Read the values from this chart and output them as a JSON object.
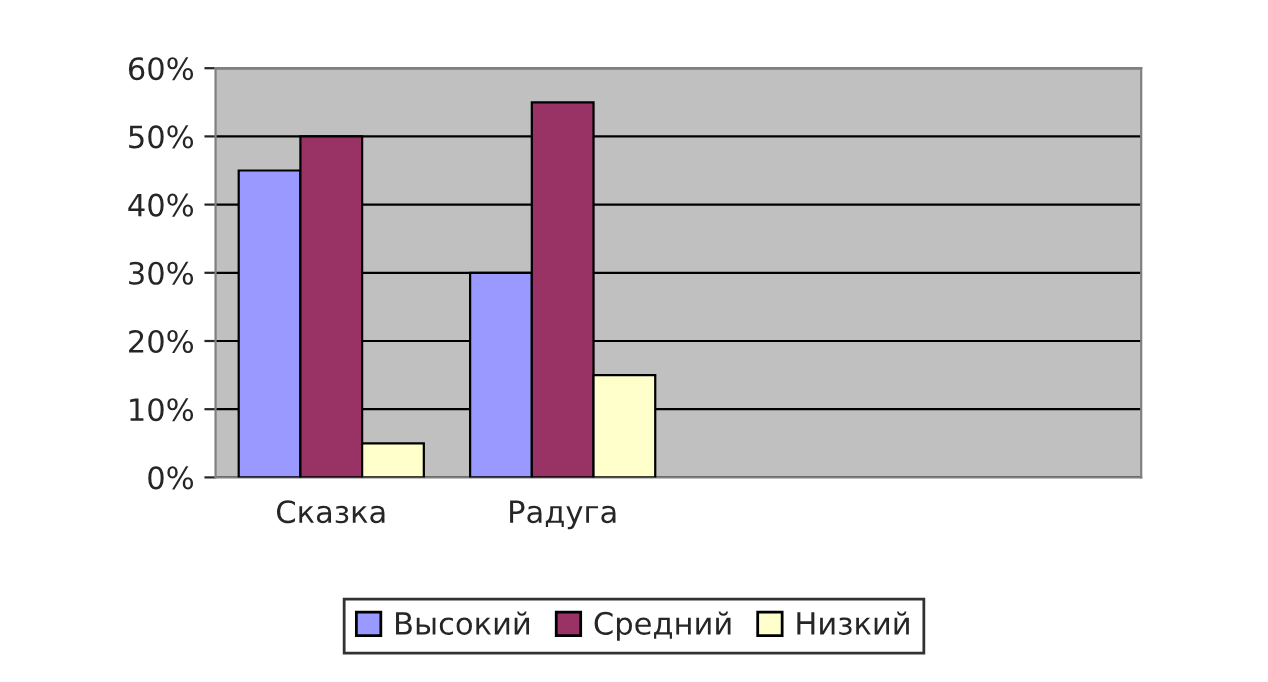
{
  "chart_data": {
    "type": "bar",
    "categories": [
      "Сказка",
      "Радуга",
      null,
      null
    ],
    "series": [
      {
        "name": "Высокий",
        "color": "#9999ff",
        "values": [
          45,
          30,
          null,
          null
        ]
      },
      {
        "name": "Средний",
        "color": "#993366",
        "values": [
          50,
          55,
          null,
          null
        ]
      },
      {
        "name": "Низкий",
        "color": "#ffffcc",
        "values": [
          5,
          15,
          null,
          null
        ]
      }
    ],
    "ylim": [
      0,
      60
    ],
    "yticks": [
      {
        "value": 0,
        "label": "0%"
      },
      {
        "value": 10,
        "label": "10%"
      },
      {
        "value": 20,
        "label": "20%"
      },
      {
        "value": 30,
        "label": "30%"
      },
      {
        "value": 40,
        "label": "40%"
      },
      {
        "value": 50,
        "label": "50%"
      },
      {
        "value": 60,
        "label": "60%"
      }
    ],
    "grid": "y",
    "legend": "bottom"
  }
}
